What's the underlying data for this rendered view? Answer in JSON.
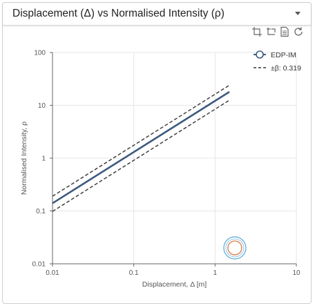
{
  "header": {
    "title": "Displacement (Δ) vs Normalised Intensity (ρ)"
  },
  "toolbar": {
    "icons": [
      "crop-icon",
      "zoom-reset-icon",
      "document-icon",
      "refresh-icon"
    ]
  },
  "colors": {
    "median": "#3c5a7e",
    "bounds": "#333333",
    "grid": "#e6e6e6",
    "marker_outer": "#5aa7d6",
    "marker_inner": "#e0895a"
  },
  "chart_data": {
    "type": "line",
    "xlabel": "Displacement, Δ [m]",
    "ylabel": "Normalised Intensity, ρ",
    "xscale": "log",
    "yscale": "log",
    "xlim": [
      0.01,
      10
    ],
    "ylim": [
      0.01,
      100
    ],
    "x_ticks": [
      "0.01",
      "0.1",
      "1",
      "10"
    ],
    "y_ticks": [
      "0.01",
      "0.1",
      "1",
      "10",
      "100"
    ],
    "grid": true,
    "legend_position": "top-right",
    "series": [
      {
        "name": "EDP-IM",
        "style": "solid",
        "x": [
          0.01,
          1.5
        ],
        "y": [
          0.14,
          18
        ]
      },
      {
        "name": "±β: 0.319",
        "style": "dashed",
        "x": [
          0.01,
          1.5
        ],
        "y": [
          0.19,
          24
        ]
      },
      {
        "style": "dashed",
        "x": [
          0.01,
          1.5
        ],
        "y": [
          0.098,
          12.5
        ]
      }
    ],
    "marker": {
      "x": 1.75,
      "y": 0.02
    }
  }
}
